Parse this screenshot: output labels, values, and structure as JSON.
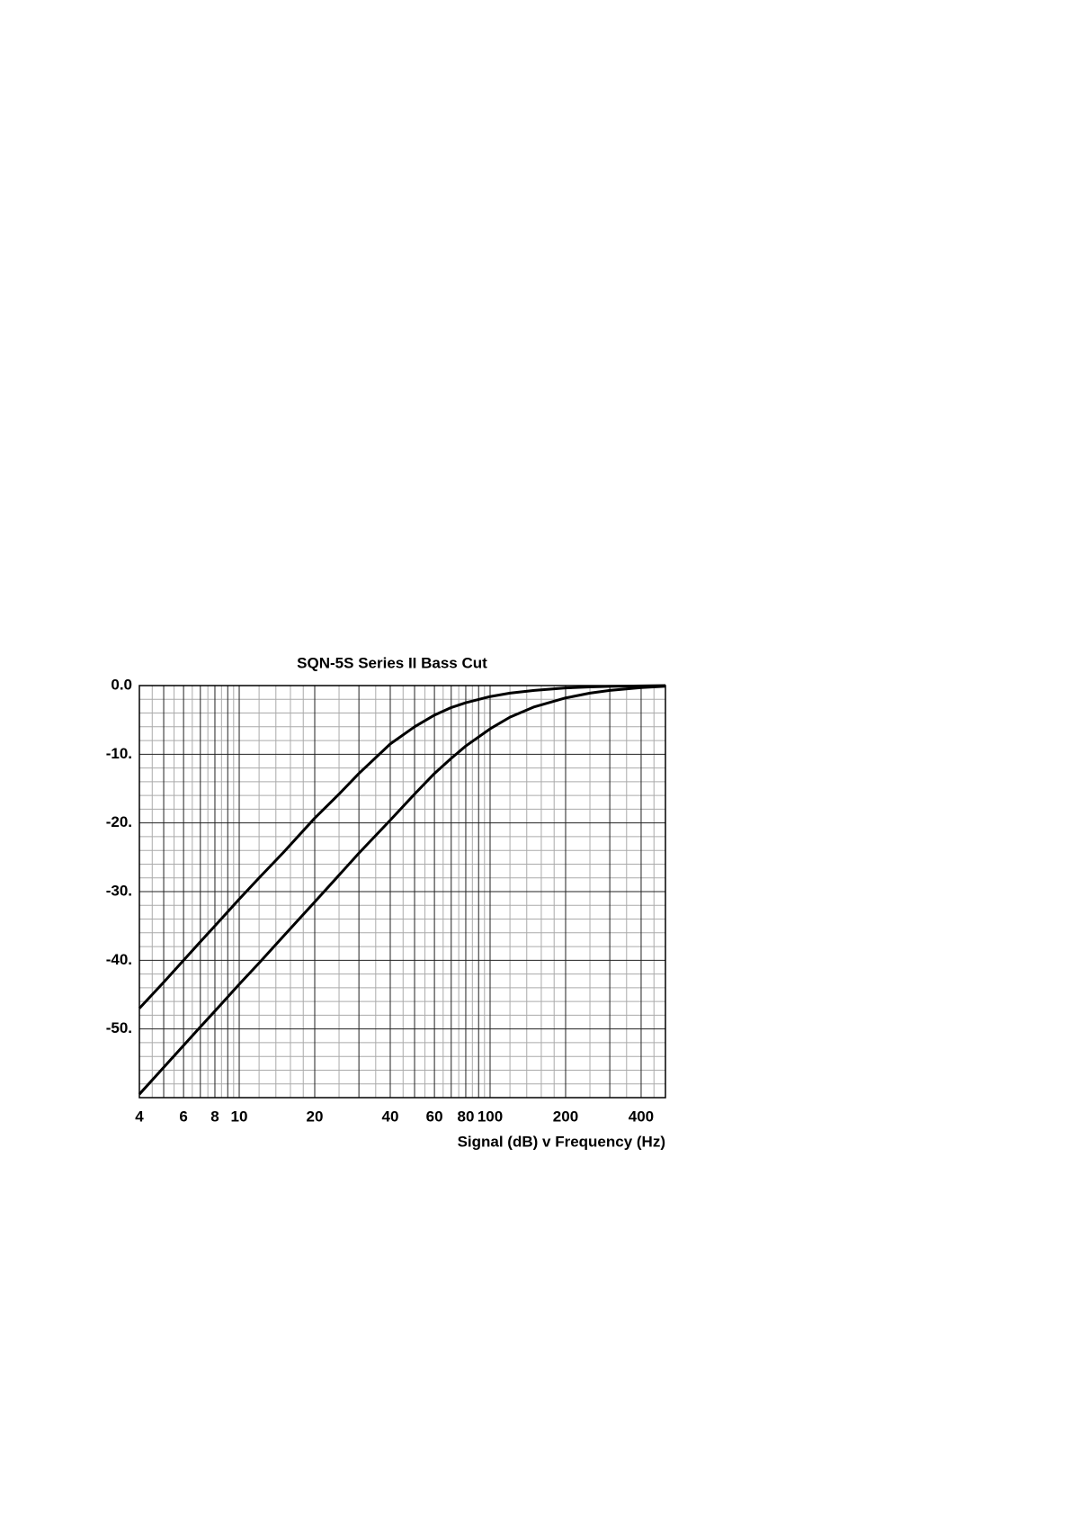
{
  "chart_data": {
    "type": "line",
    "title": "SQN-5S Series II Bass Cut",
    "xlabel": "Signal (dB) v Frequency (Hz)",
    "xscale": "log",
    "x": [
      4,
      5,
      6,
      7,
      8,
      10,
      12,
      15,
      20,
      25,
      30,
      40,
      50,
      60,
      70,
      80,
      100,
      120,
      150,
      200,
      250,
      300,
      400,
      500
    ],
    "series": [
      {
        "color": "#000000",
        "values": [
          -47.0,
          -43.2,
          -40.0,
          -37.3,
          -35.0,
          -31.1,
          -28.0,
          -24.3,
          -19.3,
          -15.8,
          -12.8,
          -8.5,
          -6.0,
          -4.3,
          -3.2,
          -2.5,
          -1.6,
          -1.1,
          -0.7,
          -0.35,
          -0.2,
          -0.12,
          -0.05,
          0
        ]
      },
      {
        "color": "#000000",
        "values": [
          -59.5,
          -55.6,
          -52.4,
          -49.7,
          -47.4,
          -43.5,
          -40.4,
          -36.5,
          -31.5,
          -27.6,
          -24.4,
          -19.6,
          -15.8,
          -12.8,
          -10.6,
          -8.8,
          -6.3,
          -4.6,
          -3.1,
          -1.8,
          -1.1,
          -0.7,
          -0.3,
          -0.1
        ]
      }
    ],
    "xlim": [
      4,
      500
    ],
    "xticks": [
      4,
      6,
      8,
      10,
      20,
      40,
      60,
      80,
      100,
      200,
      400
    ],
    "ylim": [
      -60,
      0
    ],
    "yticks": [
      {
        "value": 0,
        "label": "0.0"
      },
      {
        "value": -10,
        "label": "-10."
      },
      {
        "value": -20,
        "label": "-20."
      },
      {
        "value": -30,
        "label": "-30."
      },
      {
        "value": -40,
        "label": "-40."
      },
      {
        "value": -50,
        "label": "-50."
      }
    ],
    "grid": true,
    "x_major_grid": [
      5,
      7,
      9,
      30,
      50,
      70,
      90,
      300,
      500
    ],
    "x_minor_grid": [
      4.5,
      5.5,
      6.5,
      7.5,
      8.5,
      9.5,
      12,
      14,
      16,
      18,
      25,
      35,
      45,
      55,
      65,
      75,
      85,
      95,
      120,
      140,
      160,
      180,
      250,
      350,
      450
    ],
    "y_minor_grid": [
      -2,
      -4,
      -6,
      -8,
      -12,
      -14,
      -16,
      -18,
      -22,
      -24,
      -26,
      -28,
      -32,
      -34,
      -36,
      -38,
      -42,
      -44,
      -46,
      -48,
      -52,
      -54,
      -56,
      -58
    ]
  }
}
